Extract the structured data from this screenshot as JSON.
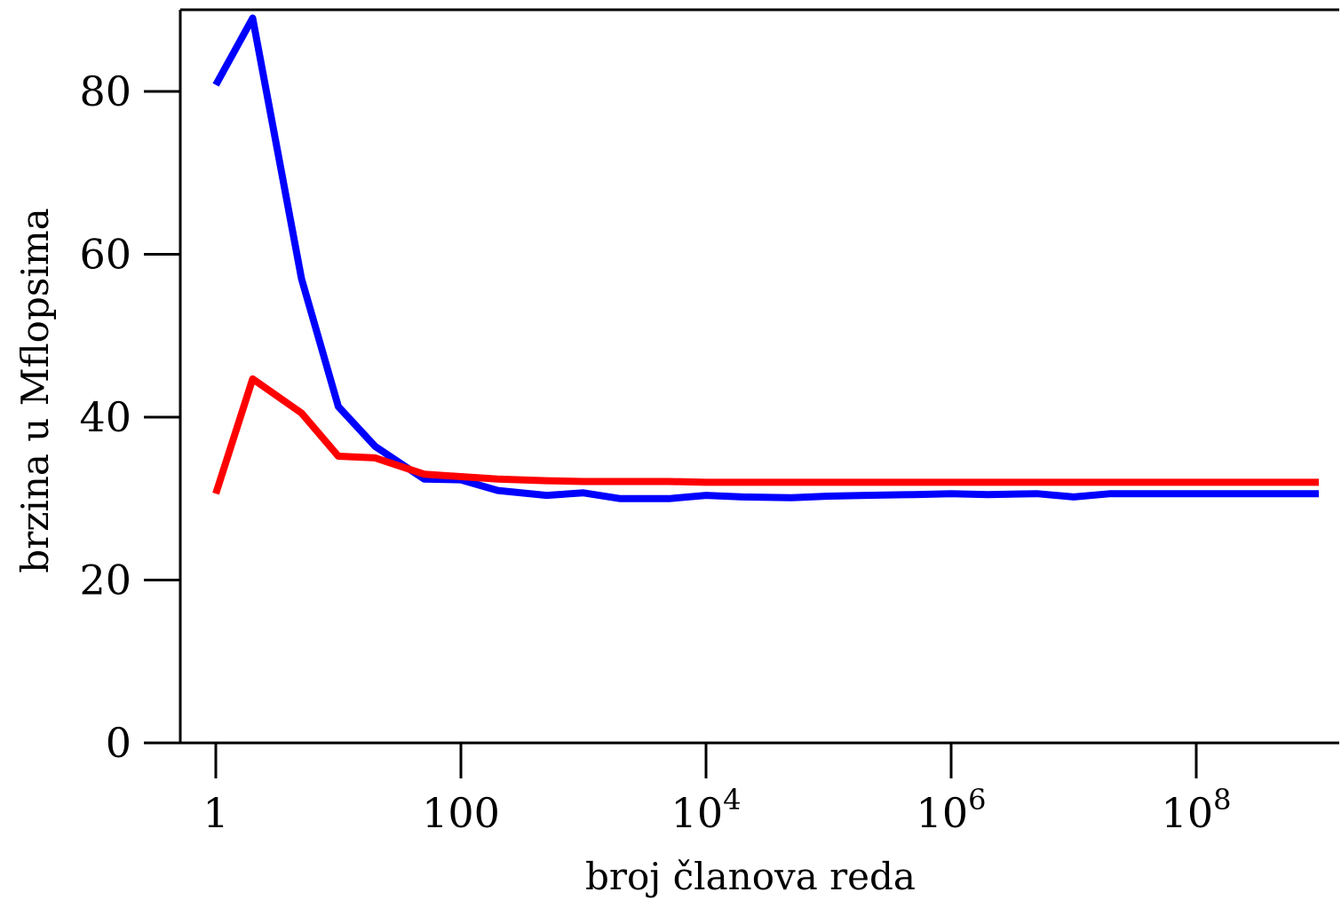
{
  "chart_data": {
    "type": "line",
    "title": "",
    "xlabel": "broj članova reda",
    "ylabel": "brzina u Mflopsima",
    "x_scale": "log",
    "xlim": [
      0.5,
      1000000000
    ],
    "ylim": [
      0,
      90
    ],
    "grid": false,
    "x_ticks": [
      {
        "value": 1,
        "base": "1",
        "exp": ""
      },
      {
        "value": 100,
        "base": "100",
        "exp": ""
      },
      {
        "value": 10000,
        "base": "10",
        "exp": "4"
      },
      {
        "value": 1000000,
        "base": "10",
        "exp": "6"
      },
      {
        "value": 100000000,
        "base": "10",
        "exp": "8"
      }
    ],
    "y_ticks": [
      {
        "value": 0,
        "label": "0"
      },
      {
        "value": 20,
        "label": "20"
      },
      {
        "value": 40,
        "label": "40"
      },
      {
        "value": 60,
        "label": "60"
      },
      {
        "value": 80,
        "label": "80"
      }
    ],
    "x": [
      1,
      2,
      5,
      10,
      20,
      50,
      100,
      200,
      500,
      1000,
      2000,
      5000,
      10000,
      20000,
      50000,
      100000,
      200000,
      500000,
      1000000,
      2000000,
      5000000,
      10000000,
      20000000,
      50000000,
      100000000,
      200000000,
      500000000,
      1000000000
    ],
    "series": [
      {
        "color": "#0000ff",
        "values": [
          80.8,
          89.0,
          57.0,
          41.3,
          36.4,
          32.4,
          32.3,
          31.0,
          30.4,
          30.7,
          30.0,
          30.0,
          30.4,
          30.2,
          30.1,
          30.3,
          30.4,
          30.5,
          30.6,
          30.5,
          30.6,
          30.2,
          30.6,
          30.6,
          30.6,
          30.6,
          30.6,
          30.6
        ]
      },
      {
        "color": "#ff0000",
        "values": [
          30.6,
          44.7,
          40.5,
          35.2,
          35.0,
          33.0,
          32.7,
          32.4,
          32.2,
          32.1,
          32.1,
          32.1,
          32.0,
          32.0,
          32.0,
          32.0,
          32.0,
          32.0,
          32.0,
          32.0,
          32.0,
          32.0,
          32.0,
          32.0,
          32.0,
          32.0,
          32.0,
          32.0
        ]
      }
    ]
  }
}
